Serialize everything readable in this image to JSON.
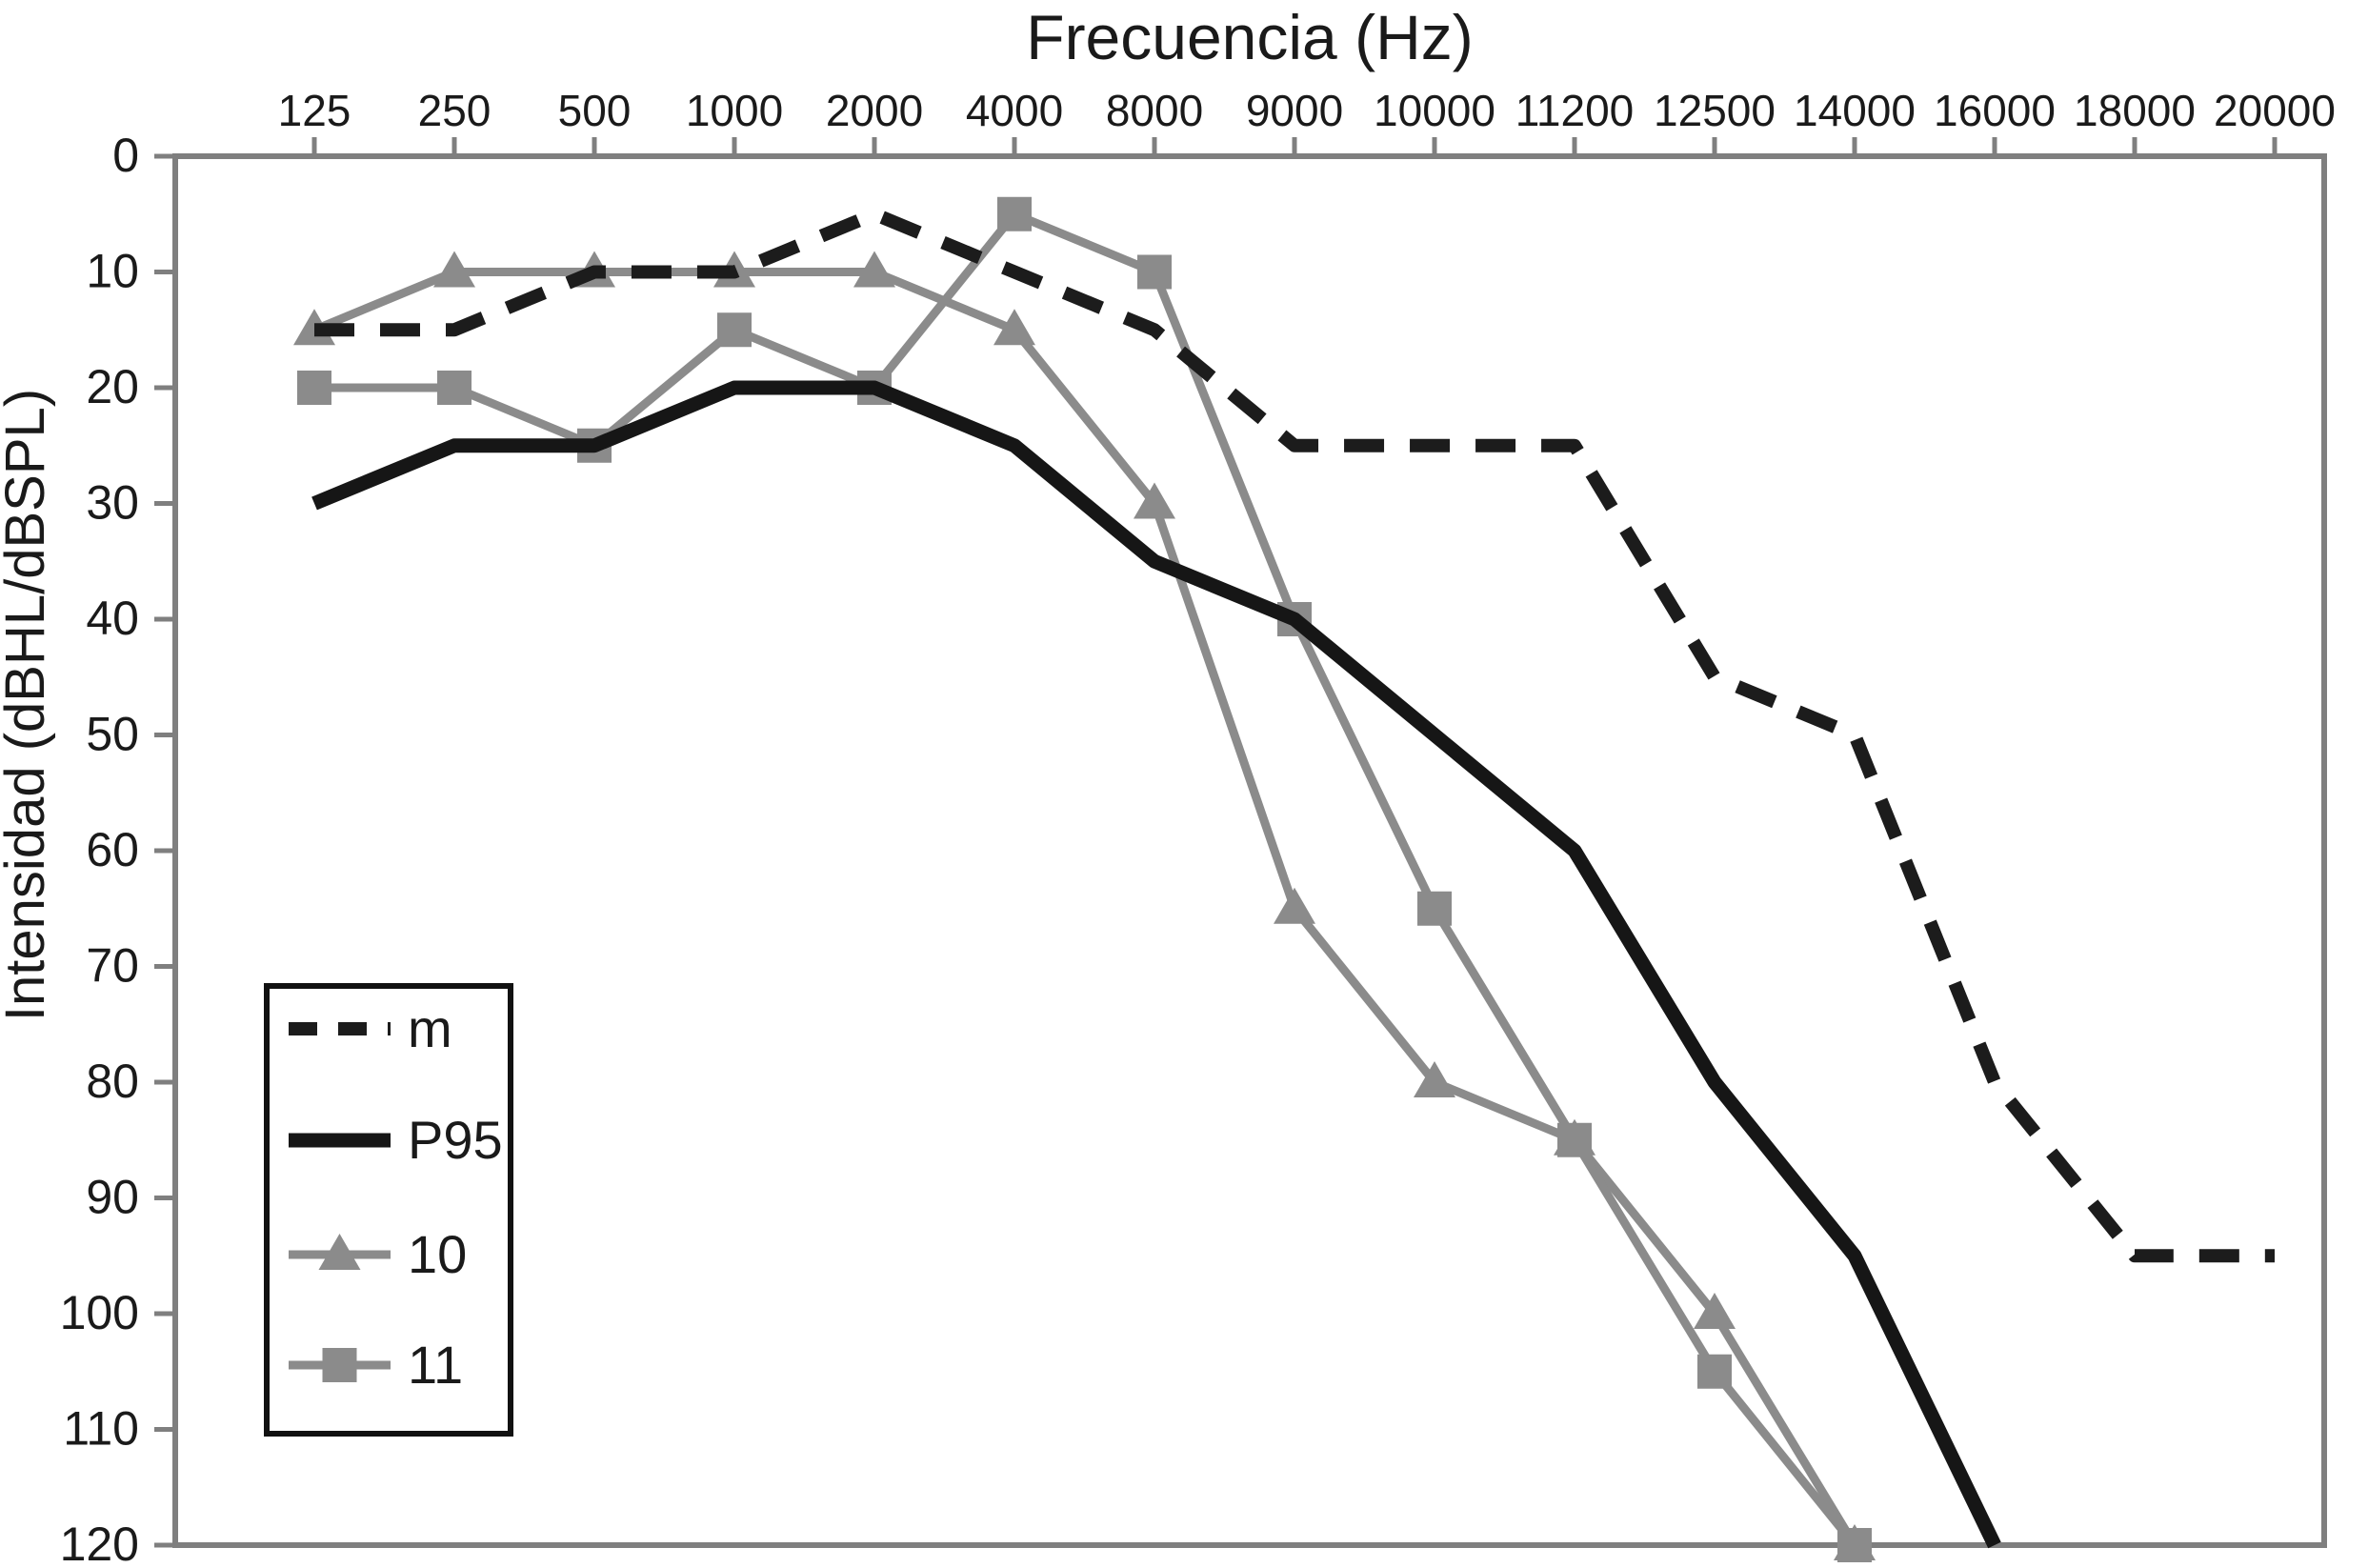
{
  "page": {
    "title": "Frecuencia (Hz)",
    "y_axis_title": "Intensidad (dBHL/dBSPL)"
  },
  "chart_data": {
    "type": "line",
    "title": "Frecuencia (Hz)",
    "xlabel": "Frecuencia (Hz)",
    "ylabel": "Intensidad (dBHL/dBSPL)",
    "x_axis_position": "top",
    "y_axis_inverted": true,
    "ylim": [
      0,
      120
    ],
    "ytick_step": 10,
    "ytick_labels": [
      "0",
      "10",
      "20",
      "30",
      "40",
      "50",
      "60",
      "70",
      "80",
      "90",
      "100",
      "110",
      "120"
    ],
    "grid": false,
    "legend_position": "inside-lower-left",
    "categories": [
      "125",
      "250",
      "500",
      "1000",
      "2000",
      "4000",
      "8000",
      "9000",
      "10000",
      "11200",
      "12500",
      "14000",
      "16000",
      "18000",
      "20000"
    ],
    "colors": {
      "dark_line": "#1c1c1c",
      "gray_line": "#8b8b8b",
      "axis": "#7f7f7f",
      "legend_border": "#111111",
      "background": "#ffffff"
    },
    "series": [
      {
        "name": "m",
        "style": "dashed",
        "color": "#1c1c1c",
        "marker": "none",
        "values": [
          15,
          15,
          10,
          10,
          5,
          10,
          15,
          25,
          25,
          25,
          45,
          50,
          80,
          95,
          95
        ]
      },
      {
        "name": "P95",
        "style": "solid-thick",
        "color": "#161616",
        "marker": "none",
        "values": [
          30,
          25,
          25,
          20,
          20,
          25,
          35,
          40,
          50,
          60,
          80,
          95,
          120,
          null,
          null
        ]
      },
      {
        "name": "10",
        "style": "solid",
        "color": "#8b8b8b",
        "marker": "triangle",
        "values": [
          15,
          10,
          10,
          10,
          10,
          15,
          30,
          65,
          80,
          85,
          100,
          120,
          null,
          null,
          null
        ]
      },
      {
        "name": "11",
        "style": "solid",
        "color": "#8b8b8b",
        "marker": "square",
        "values": [
          20,
          20,
          25,
          15,
          20,
          5,
          10,
          40,
          65,
          85,
          105,
          120,
          null,
          null,
          null
        ]
      }
    ]
  }
}
